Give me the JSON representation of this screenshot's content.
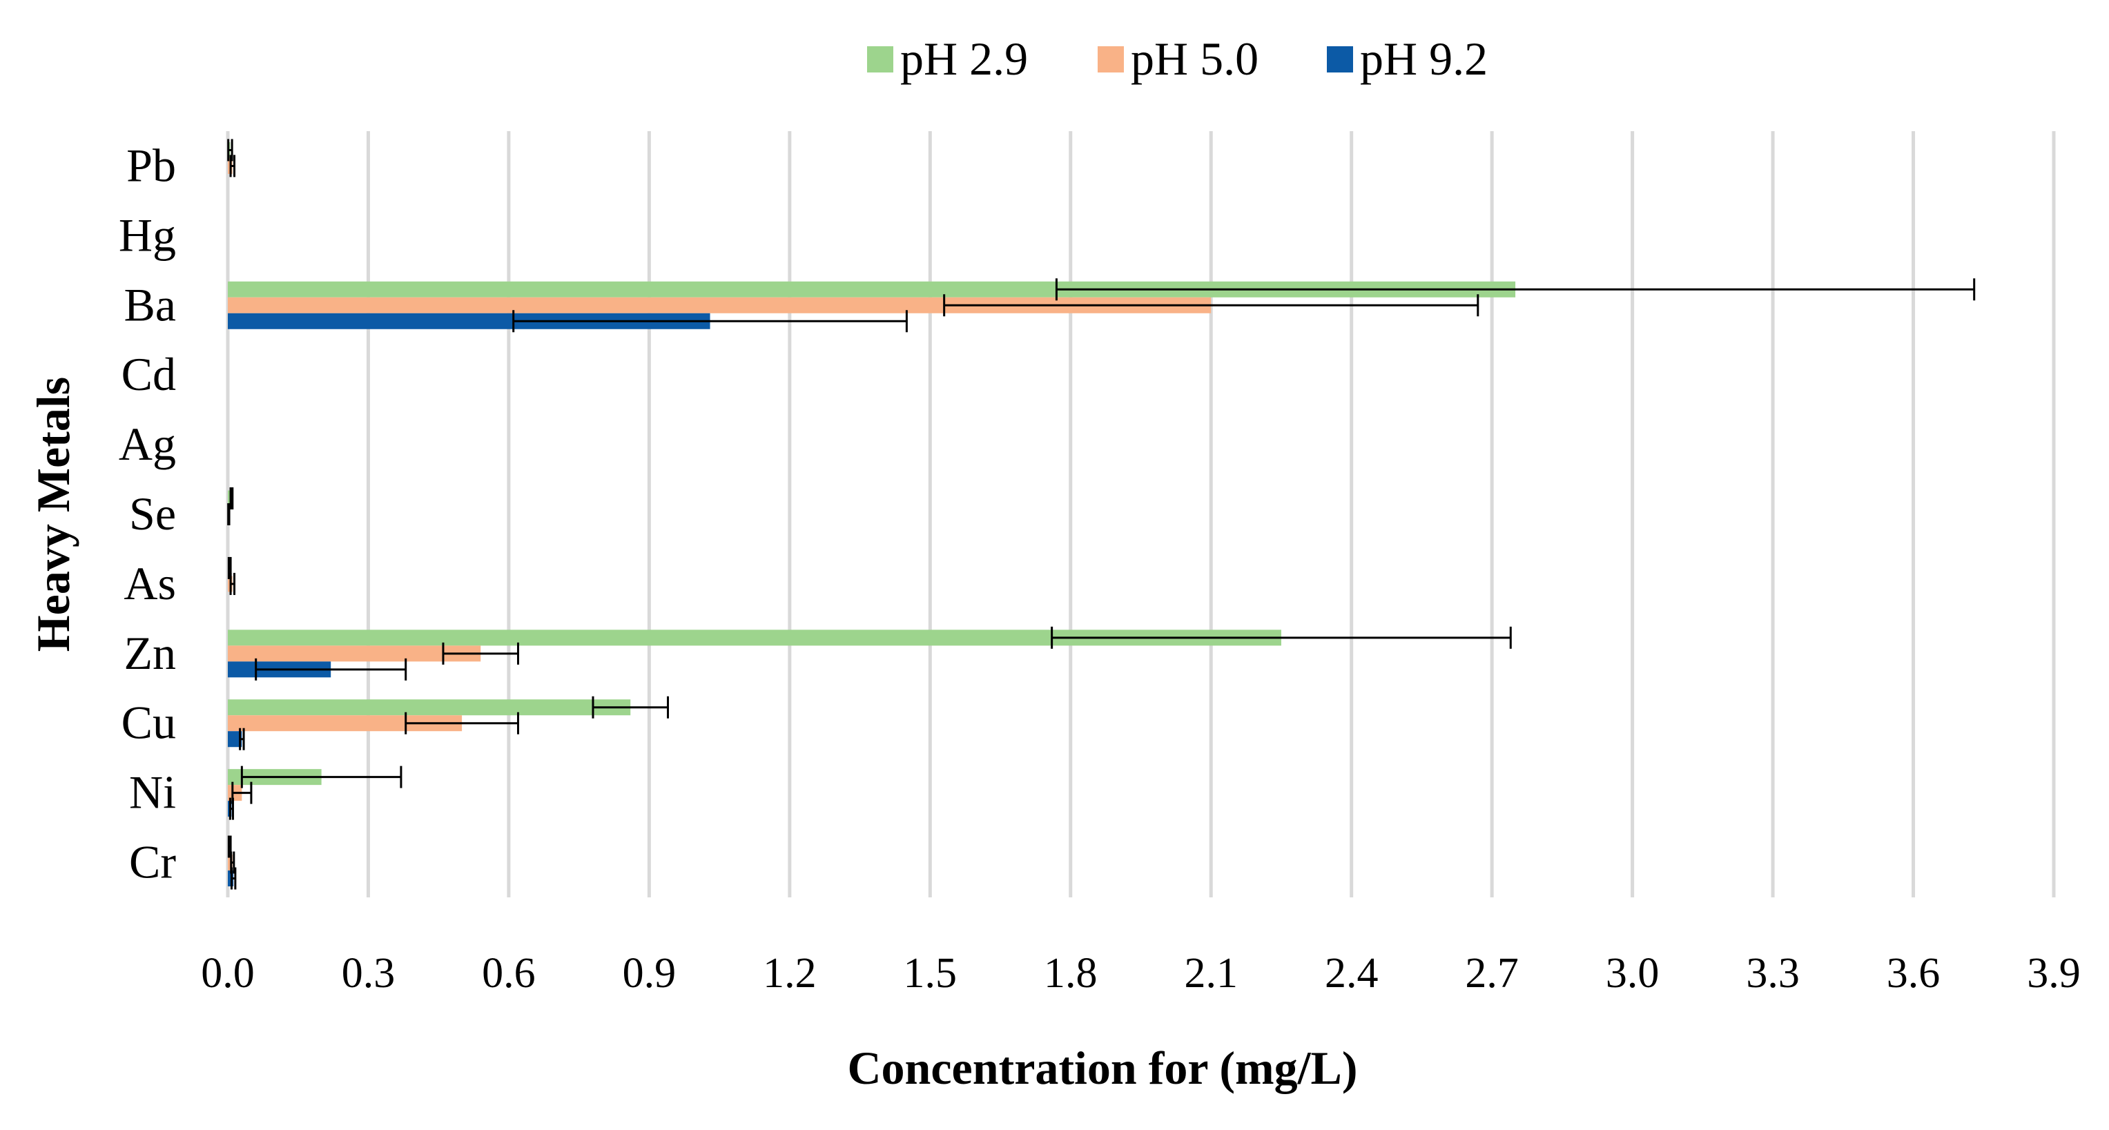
{
  "chart_data": {
    "type": "bar",
    "orientation": "horizontal",
    "title": "",
    "xlabel": "Concentration for (mg/L)",
    "ylabel": "Heavy Metals",
    "xlim": [
      0,
      3.9
    ],
    "xticks": [
      "0.0",
      "0.3",
      "0.6",
      "0.9",
      "1.2",
      "1.5",
      "1.8",
      "2.1",
      "2.4",
      "2.7",
      "3.0",
      "3.3",
      "3.6",
      "3.9"
    ],
    "grid": true,
    "legend_position": "top-center",
    "categories": [
      "Pb",
      "Hg",
      "Ba",
      "Cd",
      "Ag",
      "Se",
      "As",
      "Zn",
      "Cu",
      "Ni",
      "Cr"
    ],
    "series": [
      {
        "name": "pH 2.9",
        "color": "#9dd48d",
        "values": [
          0.005,
          0,
          2.75,
          0,
          0,
          0.008,
          0.004,
          2.25,
          0.86,
          0.2,
          0.004
        ],
        "errors": [
          0.004,
          0,
          0.98,
          0,
          0,
          0.002,
          0.002,
          0.49,
          0.08,
          0.17,
          0.002
        ]
      },
      {
        "name": "pH 5.0",
        "color": "#f9b287",
        "values": [
          0.01,
          0,
          2.1,
          0,
          0,
          0.002,
          0.01,
          0.54,
          0.5,
          0.03,
          0.01
        ],
        "errors": [
          0.004,
          0,
          0.57,
          0,
          0,
          0.001,
          0.004,
          0.08,
          0.12,
          0.02,
          0.003
        ]
      },
      {
        "name": "pH 9.2",
        "color": "#0c5aa6",
        "values": [
          0,
          0,
          1.03,
          0,
          0,
          0,
          0,
          0.22,
          0.03,
          0.008,
          0.012
        ],
        "errors": [
          0,
          0,
          0.42,
          0,
          0,
          0,
          0,
          0.16,
          0.004,
          0.003,
          0.004
        ]
      }
    ]
  }
}
